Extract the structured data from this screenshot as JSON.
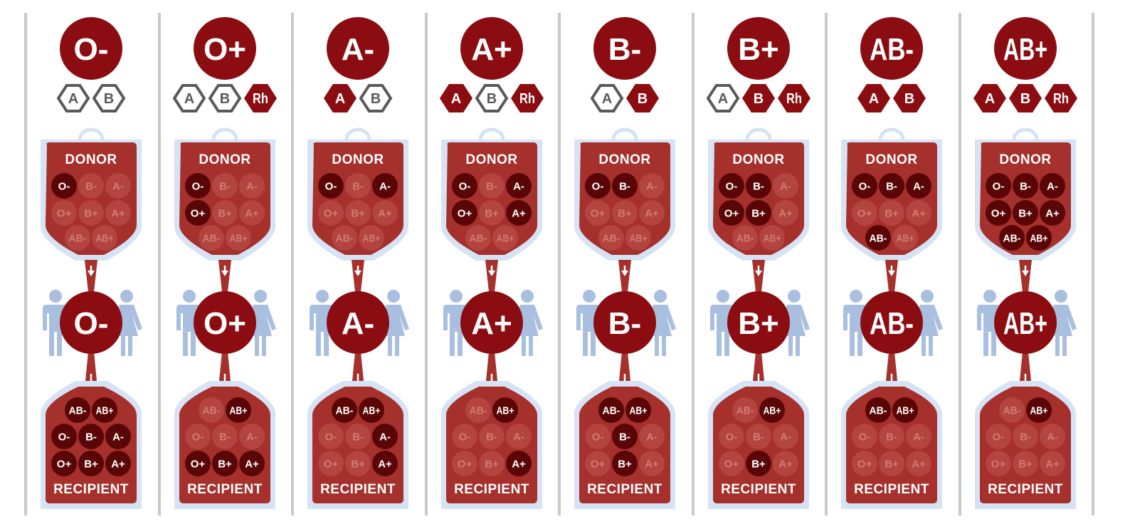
{
  "colors": {
    "blood_dark": "#8b0d12",
    "bag_body": "#a5302c",
    "bag_outline": "#d6e3f4",
    "cell_active": "#5a0607",
    "cell_inactive": "#b3443f",
    "cell_inactive_text": "#d17b73",
    "people": "#a9bfdf",
    "hex_outline": "#5a5a5a",
    "divider": "#c9c9c9"
  },
  "labels": {
    "donor": "DONOR",
    "recipient": "RECIPIENT"
  },
  "all_types_grid": [
    [
      "O-",
      "B-",
      "A-"
    ],
    [
      "O+",
      "B+",
      "A+"
    ],
    [
      "AB-",
      "AB+"
    ]
  ],
  "columns": [
    {
      "type": "O-",
      "antigens": [
        {
          "label": "A",
          "present": false
        },
        {
          "label": "B",
          "present": false
        }
      ],
      "donor_from": [
        "O-"
      ],
      "recipient_to": [
        "AB-",
        "AB+",
        "O-",
        "B-",
        "A-",
        "O+",
        "B+",
        "A+"
      ]
    },
    {
      "type": "O+",
      "antigens": [
        {
          "label": "A",
          "present": false
        },
        {
          "label": "B",
          "present": false
        },
        {
          "label": "Rh",
          "present": true
        }
      ],
      "donor_from": [
        "O-",
        "O+"
      ],
      "recipient_to": [
        "AB+",
        "O+",
        "B+",
        "A+"
      ]
    },
    {
      "type": "A-",
      "antigens": [
        {
          "label": "A",
          "present": true
        },
        {
          "label": "B",
          "present": false
        }
      ],
      "donor_from": [
        "O-",
        "A-"
      ],
      "recipient_to": [
        "AB-",
        "AB+",
        "A-",
        "A+"
      ]
    },
    {
      "type": "A+",
      "antigens": [
        {
          "label": "A",
          "present": true
        },
        {
          "label": "B",
          "present": false
        },
        {
          "label": "Rh",
          "present": true
        }
      ],
      "donor_from": [
        "O-",
        "A-",
        "O+",
        "A+"
      ],
      "recipient_to": [
        "AB+",
        "A+"
      ]
    },
    {
      "type": "B-",
      "antigens": [
        {
          "label": "A",
          "present": false
        },
        {
          "label": "B",
          "present": true
        }
      ],
      "donor_from": [
        "O-",
        "B-"
      ],
      "recipient_to": [
        "AB-",
        "AB+",
        "B-",
        "B+"
      ]
    },
    {
      "type": "B+",
      "antigens": [
        {
          "label": "A",
          "present": false
        },
        {
          "label": "B",
          "present": true
        },
        {
          "label": "Rh",
          "present": true
        }
      ],
      "donor_from": [
        "O-",
        "B-",
        "O+",
        "B+"
      ],
      "recipient_to": [
        "AB+",
        "B+"
      ]
    },
    {
      "type": "AB-",
      "antigens": [
        {
          "label": "A",
          "present": true
        },
        {
          "label": "B",
          "present": true
        }
      ],
      "donor_from": [
        "O-",
        "B-",
        "A-",
        "AB-"
      ],
      "recipient_to": [
        "AB-",
        "AB+"
      ]
    },
    {
      "type": "AB+",
      "antigens": [
        {
          "label": "A",
          "present": true
        },
        {
          "label": "B",
          "present": true
        },
        {
          "label": "Rh",
          "present": true
        }
      ],
      "donor_from": [
        "O-",
        "B-",
        "A-",
        "O+",
        "B+",
        "A+",
        "AB-",
        "AB+"
      ],
      "recipient_to": [
        "AB+"
      ]
    }
  ]
}
